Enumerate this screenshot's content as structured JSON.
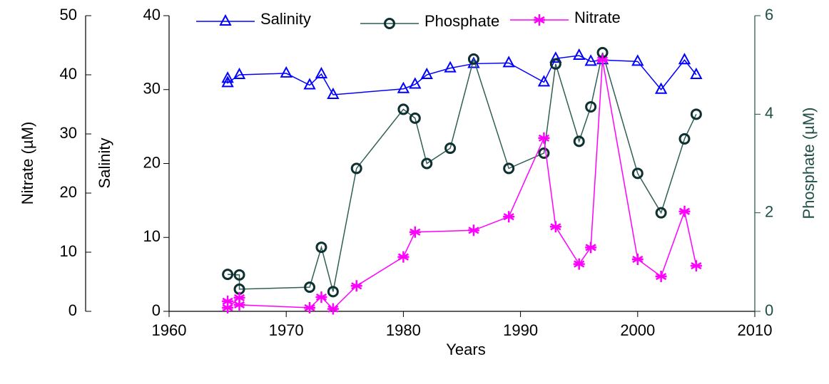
{
  "chart_data": {
    "type": "line",
    "x_label": "Years",
    "y_label": "Salinity",
    "y2_label": "Phosphate (µM)",
    "y3_label": "Nitrate (µM)",
    "xlim": [
      1960,
      2010
    ],
    "xticks": [
      1960,
      1970,
      1980,
      1990,
      2000,
      2010
    ],
    "ylim": [
      0,
      40
    ],
    "yticks": [
      0,
      10,
      20,
      30,
      40
    ],
    "y2lim": [
      0,
      6
    ],
    "y2ticks": [
      0,
      2,
      4,
      6
    ],
    "y3lim": [
      0,
      50
    ],
    "y3ticks": [
      0,
      10,
      20,
      30,
      40,
      50
    ],
    "legend": "upper center",
    "series": [
      {
        "name": "Salinity",
        "color": "#0000ff",
        "marker": "triangle",
        "axis": "y",
        "x": [
          1965,
          1965,
          1966,
          1970,
          1972,
          1973,
          1974,
          1980,
          1981,
          1982,
          1984,
          1986,
          1989,
          1992,
          1993,
          1995,
          1996,
          1997,
          2000,
          2002,
          2004,
          2005
        ],
        "values": [
          31.5,
          30.9,
          32.0,
          32.2,
          30.6,
          32.1,
          29.3,
          30.1,
          30.7,
          32.0,
          32.9,
          33.5,
          33.6,
          31.0,
          34.2,
          34.6,
          33.8,
          34.0,
          33.8,
          30.0,
          34.0,
          32.0
        ]
      },
      {
        "name": "Phosphate",
        "color": "#2f5f55",
        "marker": "circle",
        "axis": "y2",
        "x": [
          1965,
          1966,
          1966,
          1972,
          1973,
          1974,
          1976,
          1980,
          1981,
          1982,
          1984,
          1986,
          1989,
          1992,
          1993,
          1995,
          1996,
          1997,
          2000,
          2002,
          2004,
          2005
        ],
        "values": [
          0.75,
          0.74,
          0.45,
          0.49,
          1.3,
          0.4,
          2.9,
          4.1,
          3.92,
          3.0,
          3.31,
          5.12,
          2.9,
          3.21,
          5.02,
          3.45,
          4.15,
          5.25,
          2.8,
          2.0,
          3.5,
          4.0
        ]
      },
      {
        "name": "Nitrate",
        "color": "#ff00ff",
        "marker": "asterisk",
        "axis": "y3",
        "x": [
          1965,
          1965,
          1966,
          1966,
          1972,
          1973,
          1974,
          1976,
          1980,
          1981,
          1986,
          1989,
          1992,
          1993,
          1995,
          1996,
          1997,
          2000,
          2002,
          2004,
          2005
        ],
        "values": [
          1.7,
          0.6,
          2.3,
          1.1,
          0.6,
          2.4,
          0.4,
          4.3,
          9.2,
          13.4,
          13.7,
          16.0,
          29.3,
          14.3,
          8.0,
          10.8,
          42.5,
          8.8,
          5.9,
          16.9,
          7.7
        ]
      }
    ]
  }
}
